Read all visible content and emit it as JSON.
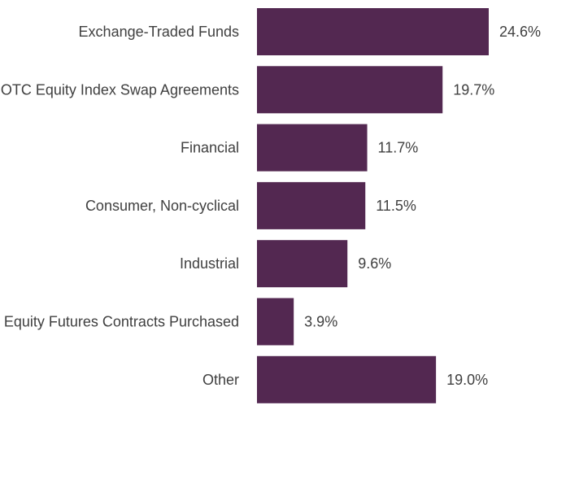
{
  "chart_data": {
    "type": "bar",
    "orientation": "horizontal",
    "categories": [
      "Exchange-Traded Funds",
      "OTC Equity Index Swap Agreements",
      "Financial",
      "Consumer, Non-cyclical",
      "Industrial",
      "Equity Futures Contracts Purchased",
      "Other"
    ],
    "values": [
      24.6,
      19.7,
      11.7,
      11.5,
      9.6,
      3.9,
      19.0
    ],
    "value_labels": [
      "24.6%",
      "19.7%",
      "11.7%",
      "11.5%",
      "9.6%",
      "3.9%",
      "19.0%"
    ],
    "title": "",
    "xlabel": "",
    "ylabel": "",
    "xlim": [
      0,
      24.6
    ],
    "grid": false,
    "bar_color": "#532851"
  }
}
